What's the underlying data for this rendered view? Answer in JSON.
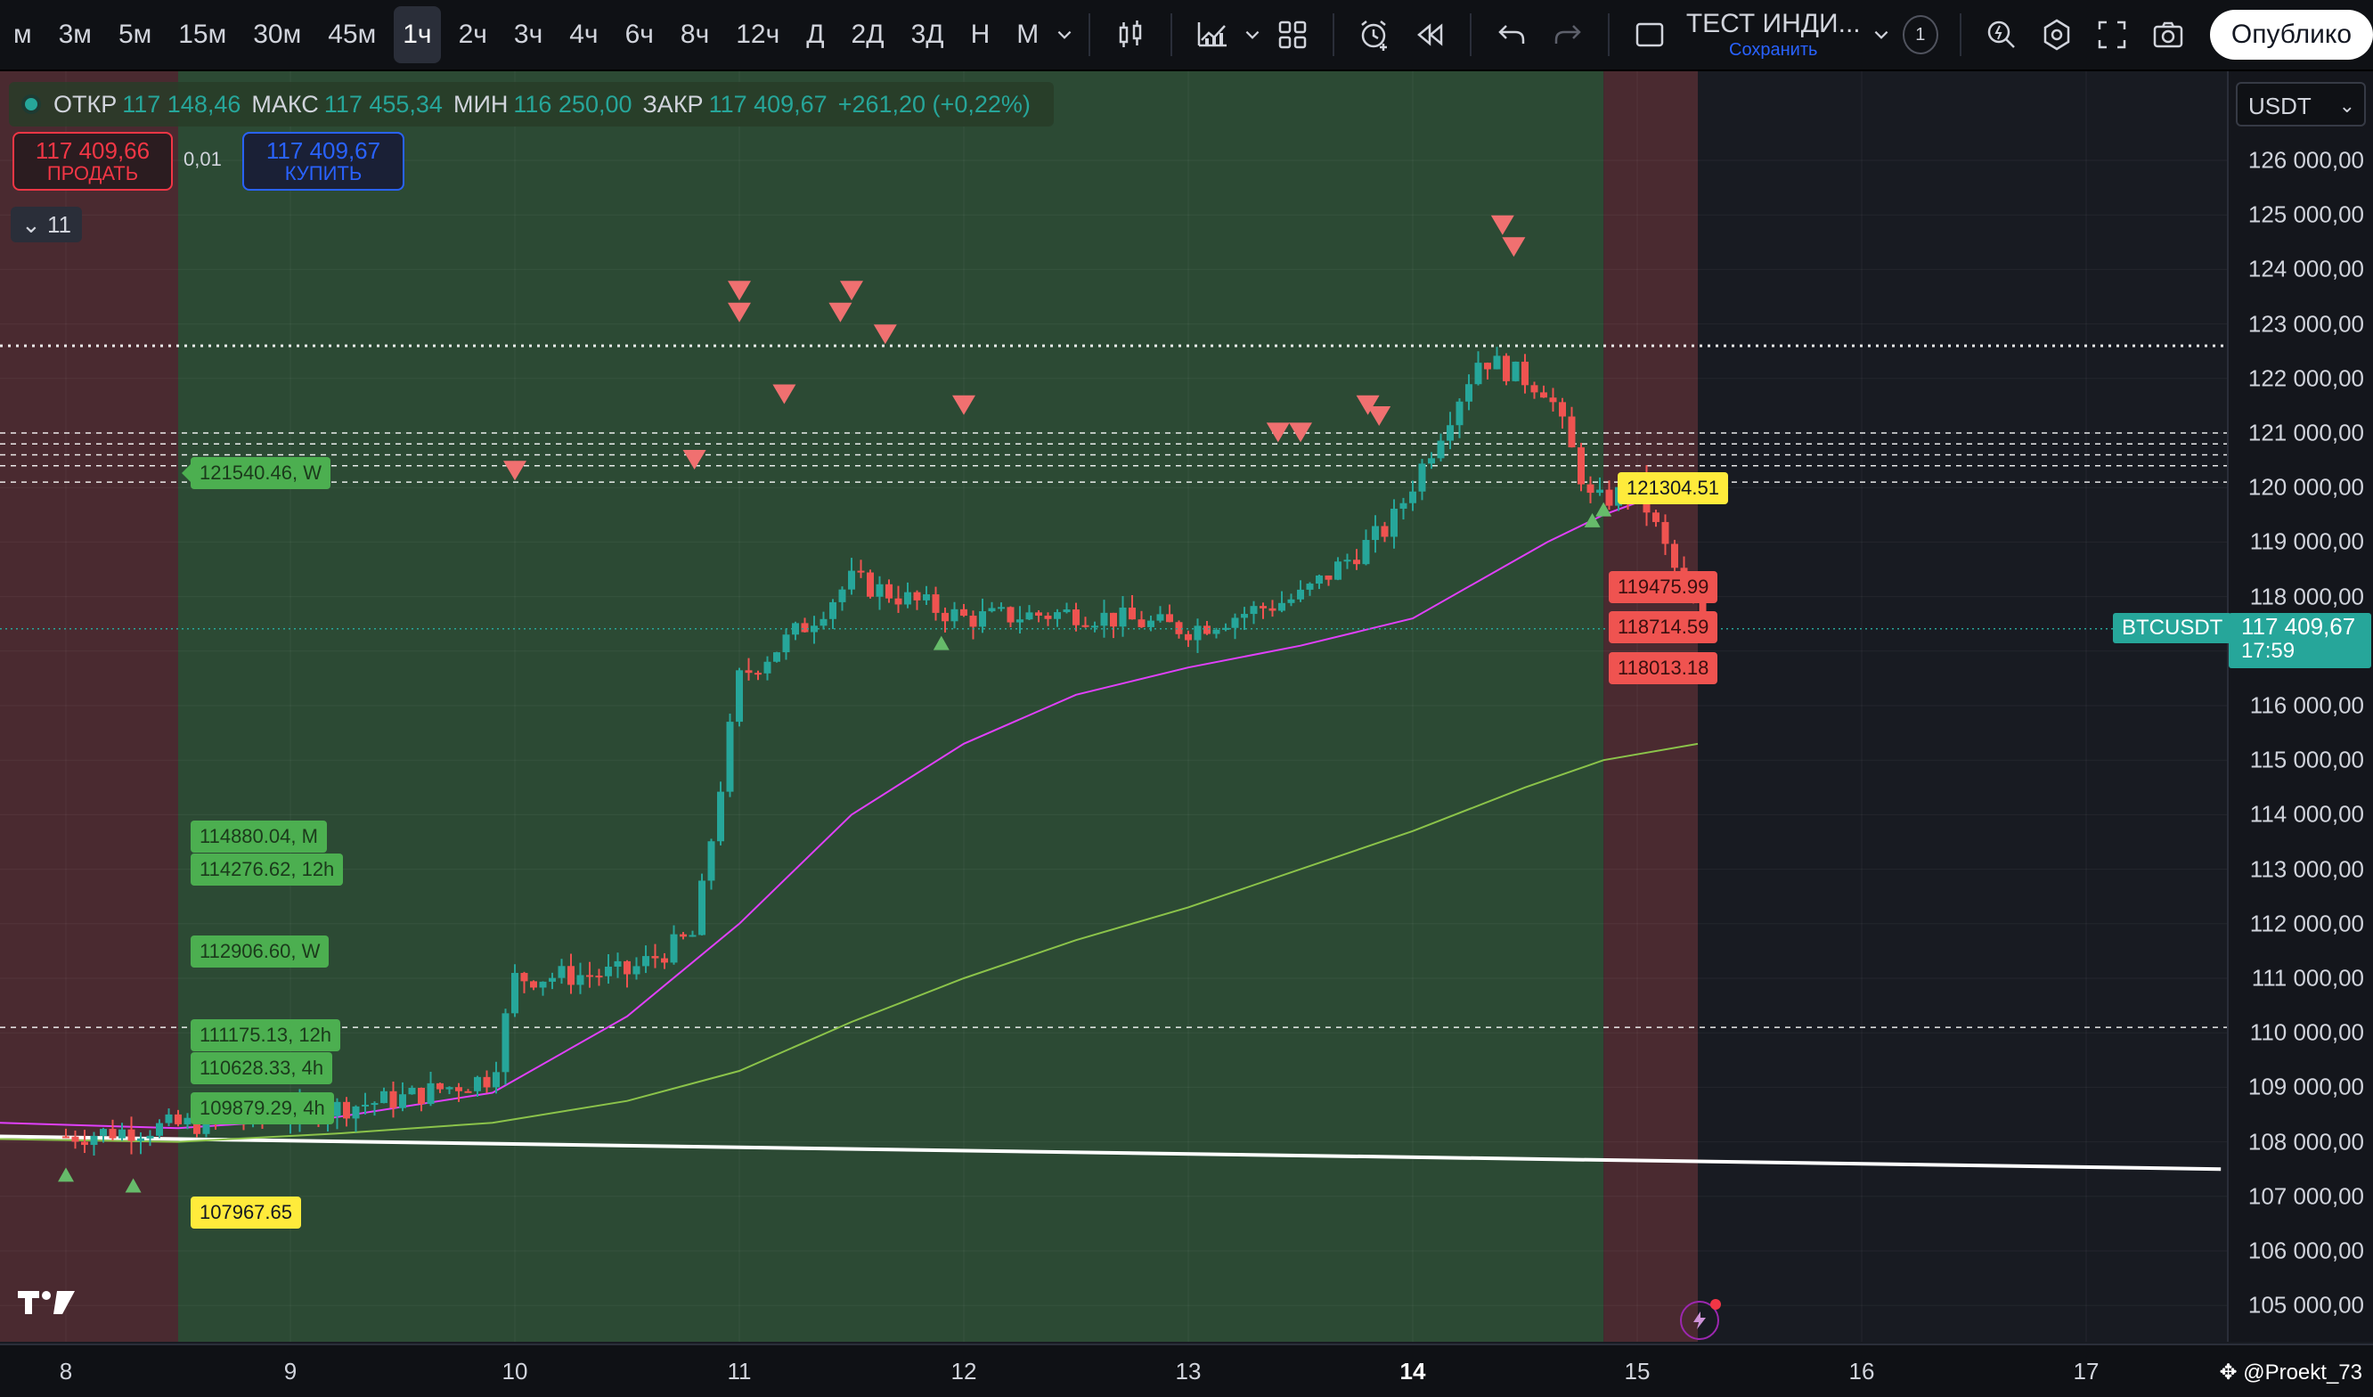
{
  "toolbar": {
    "timeframes": [
      "м",
      "3м",
      "5м",
      "15м",
      "30м",
      "45м",
      "1ч",
      "2ч",
      "3ч",
      "4ч",
      "6ч",
      "8ч",
      "12ч",
      "Д",
      "2Д",
      "3Д",
      "Н",
      "М"
    ],
    "active_timeframe": "1ч",
    "layout_name": "ТЕСТ ИНДИ...",
    "layout_save": "Сохранить",
    "layout_count": "1",
    "publish_label": "Опублико"
  },
  "legend": {
    "open_label": "ОТКР",
    "open": "117 148,46",
    "high_label": "МАКС",
    "high": "117 455,34",
    "low_label": "МИН",
    "low": "116 250,00",
    "close_label": "ЗАКР",
    "close": "117 409,67",
    "change": "+261,20 (+0,22%)"
  },
  "trade": {
    "sell_price": "117 409,66",
    "sell_label": "ПРОДАТЬ",
    "spread": "0,01",
    "buy_price": "117 409,67",
    "buy_label": "КУПИТЬ",
    "indicators_count": "11"
  },
  "price_scale": {
    "currency": "USDT",
    "labels": [
      "126 000,00",
      "125 000,00",
      "124 000,00",
      "123 000,00",
      "122 000,00",
      "121 000,00",
      "120 000,00",
      "119 000,00",
      "118 000,00",
      "117 000,00",
      "116 000,00",
      "115 000,00",
      "114 000,00",
      "113 000,00",
      "112 000,00",
      "111 000,00",
      "110 000,00",
      "109 000,00",
      "108 000,00",
      "107 000,00",
      "106 000,00",
      "105 000,00"
    ]
  },
  "last_price": {
    "symbol": "BTCUSDT",
    "price": "117 409,67",
    "countdown": "17:59"
  },
  "time_axis": [
    "8",
    "9",
    "10",
    "11",
    "12",
    "13",
    "14",
    "15",
    "16",
    "17"
  ],
  "chart_labels": {
    "g1": "121540.46, W",
    "g2": "114880.04, M",
    "g3": "114276.62, 12h",
    "g4": "112906.60, W",
    "g5": "111175.13, 12h",
    "g6": "110628.33, 4h",
    "g7": "109879.29, 4h",
    "y1": "107967.65",
    "y2": "121304.51",
    "r1": "119475.99",
    "r2": "118714.59",
    "r3": "118013.18"
  },
  "credit": "@Proekt_73",
  "chart_data": {
    "type": "candlestick",
    "symbol": "BTCUSDT",
    "interval": "1ч",
    "currency": "USDT",
    "ylim": [
      104500,
      126700
    ],
    "x_ticks": [
      "8",
      "9",
      "10",
      "11",
      "12",
      "13",
      "14",
      "15",
      "16",
      "17"
    ],
    "ohlc_last": {
      "open": 117148.46,
      "high": 117455.34,
      "low": 116250.0,
      "close": 117409.67
    },
    "approx_close_path": [
      {
        "day": 8.0,
        "price": 108100
      },
      {
        "day": 8.5,
        "price": 108300
      },
      {
        "day": 9.0,
        "price": 108500
      },
      {
        "day": 9.5,
        "price": 108800
      },
      {
        "day": 9.9,
        "price": 109200
      },
      {
        "day": 10.0,
        "price": 111000
      },
      {
        "day": 10.5,
        "price": 111100
      },
      {
        "day": 10.8,
        "price": 111800
      },
      {
        "day": 11.0,
        "price": 116500
      },
      {
        "day": 11.3,
        "price": 117500
      },
      {
        "day": 11.5,
        "price": 118300
      },
      {
        "day": 12.0,
        "price": 117600
      },
      {
        "day": 12.5,
        "price": 117700
      },
      {
        "day": 13.0,
        "price": 117400
      },
      {
        "day": 13.5,
        "price": 118000
      },
      {
        "day": 13.9,
        "price": 119300
      },
      {
        "day": 14.3,
        "price": 122400
      },
      {
        "day": 14.6,
        "price": 121800
      },
      {
        "day": 14.8,
        "price": 119700
      },
      {
        "day": 15.0,
        "price": 120000
      },
      {
        "day": 15.2,
        "price": 118200
      },
      {
        "day": 15.3,
        "price": 117400
      }
    ],
    "horizontal_levels": [
      122600,
      121000,
      120800,
      120600,
      120400,
      120100,
      110100
    ],
    "trendline": {
      "from": {
        "day": 7.7,
        "price": 108100
      },
      "to": {
        "day": 17.6,
        "price": 107500
      }
    },
    "moving_averages": [
      {
        "color": "#e040fb",
        "end_price": 119600
      },
      {
        "color": "#8bc34a",
        "end_price": 115300
      }
    ],
    "sessions": [
      {
        "from_day": 7.7,
        "to_day": 8.5,
        "color": "red"
      },
      {
        "from_day": 8.5,
        "to_day": 14.85,
        "color": "green"
      },
      {
        "from_day": 14.85,
        "to_day": 15.27,
        "color": "red"
      }
    ]
  }
}
